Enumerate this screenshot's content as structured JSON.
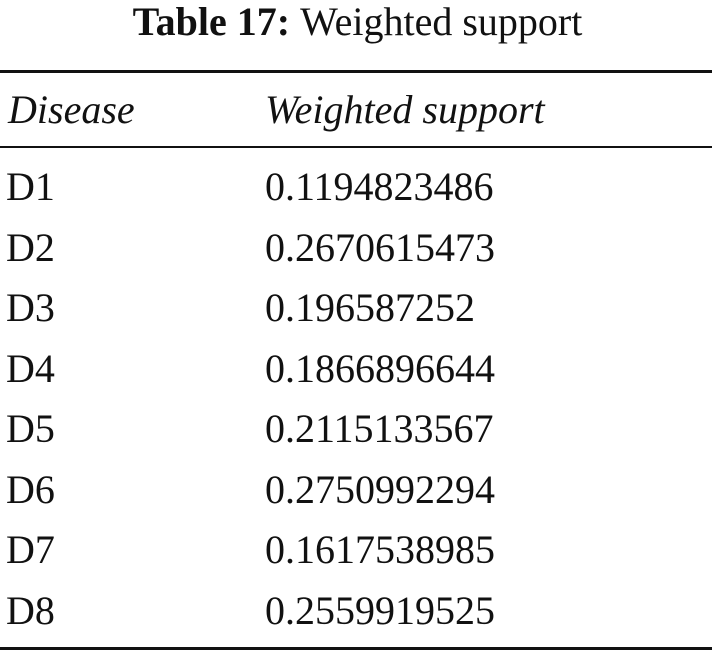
{
  "table": {
    "caption_label": "Table 17:",
    "caption": "Weighted support",
    "columns": [
      "Disease",
      "Weighted support"
    ],
    "rows": [
      [
        "D1",
        "0.1194823486"
      ],
      [
        "D2",
        "0.2670615473"
      ],
      [
        "D3",
        "0.196587252"
      ],
      [
        "D4",
        "0.1866896644"
      ],
      [
        "D5",
        "0.2115133567"
      ],
      [
        "D6",
        "0.2750992294"
      ],
      [
        "D7",
        "0.1617538985"
      ],
      [
        "D8",
        "0.2559919525"
      ]
    ]
  }
}
